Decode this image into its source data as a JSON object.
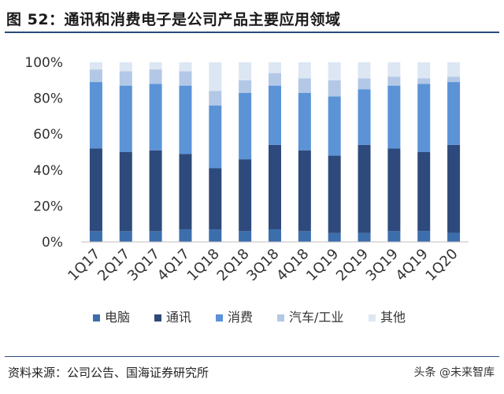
{
  "header": {
    "title": "图 52：通讯和消费电子是公司产品主要应用领域"
  },
  "footer": {
    "source": "资料来源：公司公告、国海证券研究所",
    "watermark": "头条 @未来智库"
  },
  "chart_data": {
    "type": "bar",
    "stacked": true,
    "categories": [
      "1Q17",
      "2Q17",
      "3Q17",
      "4Q17",
      "1Q18",
      "2Q18",
      "3Q18",
      "4Q18",
      "1Q19",
      "2Q19",
      "3Q19",
      "4Q19",
      "1Q20"
    ],
    "ylim": [
      0,
      100
    ],
    "ytick_values": [
      0,
      20,
      40,
      60,
      80,
      100
    ],
    "ytick_labels": [
      "0%",
      "20%",
      "40%",
      "60%",
      "80%",
      "100%"
    ],
    "legend_position": "bottom",
    "grid": false,
    "series": [
      {
        "name": "电脑",
        "color": "#3c6eac",
        "values": [
          6,
          6,
          6,
          7,
          7,
          6,
          7,
          6,
          5,
          5,
          6,
          6,
          5
        ]
      },
      {
        "name": "通讯",
        "color": "#2e4a7c",
        "values": [
          46,
          44,
          45,
          42,
          34,
          40,
          47,
          45,
          43,
          49,
          46,
          44,
          49
        ]
      },
      {
        "name": "消费",
        "color": "#5b93d6",
        "values": [
          37,
          37,
          37,
          38,
          35,
          37,
          33,
          32,
          33,
          31,
          35,
          38,
          35
        ]
      },
      {
        "name": "汽车/工业",
        "color": "#b3c8e6",
        "values": [
          7,
          8,
          8,
          8,
          8,
          7,
          7,
          8,
          9,
          6,
          5,
          3,
          3
        ]
      },
      {
        "name": "其他",
        "color": "#dde7f3",
        "values": [
          4,
          5,
          4,
          5,
          16,
          10,
          6,
          9,
          10,
          9,
          8,
          9,
          8
        ]
      }
    ]
  }
}
